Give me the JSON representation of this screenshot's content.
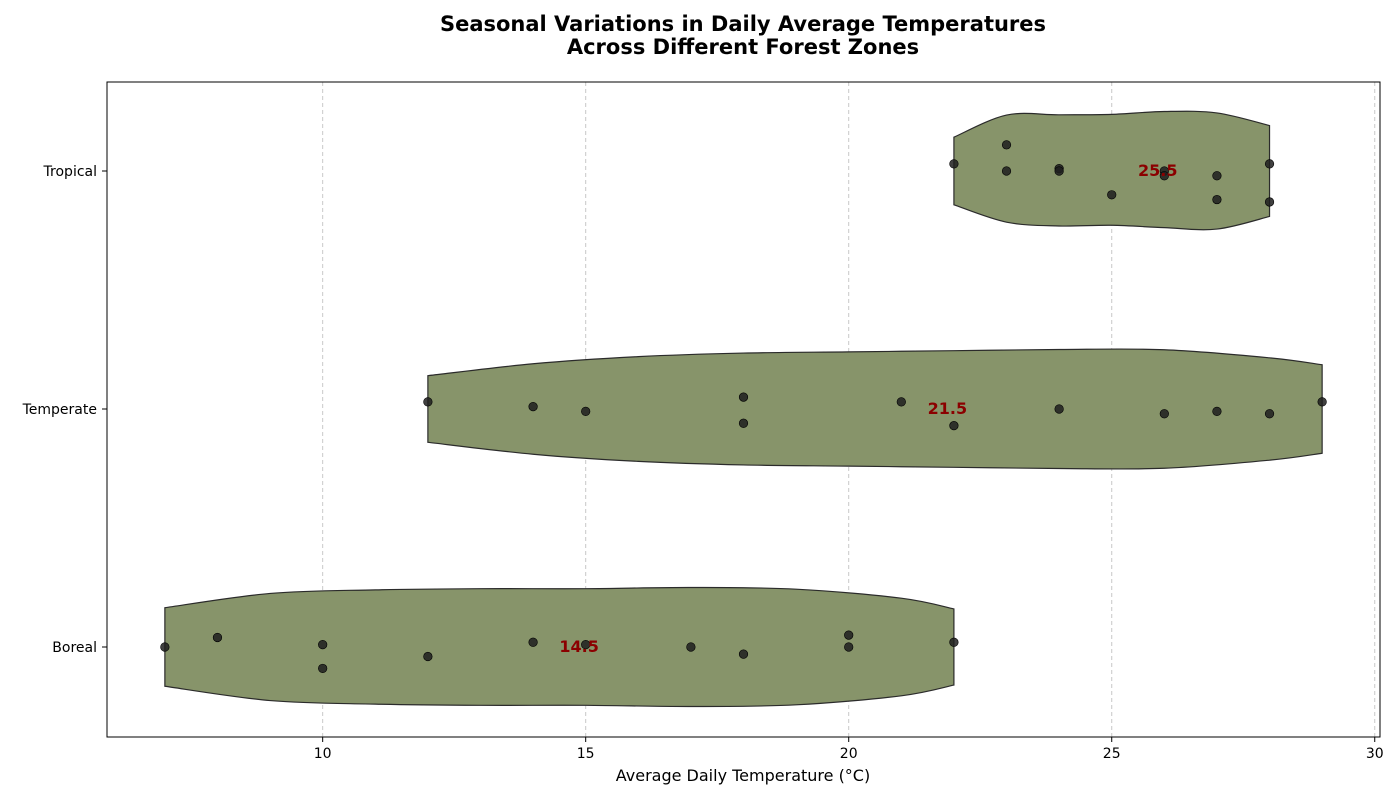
{
  "chart_data": {
    "type": "violin",
    "orientation": "horizontal",
    "title_lines": [
      "Seasonal Variations in Daily Average Temperatures",
      "Across Different Forest Zones"
    ],
    "xlabel": "Average Daily Temperature (°C)",
    "ylabel": "",
    "xlim": [
      5.9,
      30.1
    ],
    "xticks": [
      10,
      15,
      20,
      25,
      30
    ],
    "grid": "x-dashed",
    "colors": {
      "violin_fill": "#87946a",
      "violin_edge": "#2b2b2b",
      "point": "#1f1f1f",
      "median_text": "#8b0000",
      "grid": "#c8c8c8"
    },
    "categories": [
      "Tropical",
      "Temperate",
      "Boreal"
    ],
    "series": [
      {
        "category": "Tropical",
        "median": 25.5,
        "median_label": "25.5",
        "range": [
          22,
          28
        ],
        "values": [
          22,
          23,
          23,
          24,
          24,
          25,
          26,
          26,
          27,
          27,
          28,
          28
        ],
        "jitter": [
          0.03,
          0.11,
          0.0,
          0.01,
          0.0,
          -0.1,
          0.0,
          -0.02,
          -0.02,
          -0.12,
          0.03,
          -0.13
        ],
        "density": [
          [
            22.0,
            0.142
          ],
          [
            23.0,
            0.235
          ],
          [
            24.0,
            0.236
          ],
          [
            25.0,
            0.238
          ],
          [
            26.0,
            0.25
          ],
          [
            27.0,
            0.244
          ],
          [
            28.0,
            0.191
          ]
        ],
        "density_lower": [
          [
            22.0,
            0.142
          ],
          [
            23.0,
            0.215
          ],
          [
            24.0,
            0.231
          ],
          [
            25.0,
            0.228
          ],
          [
            26.0,
            0.238
          ],
          [
            27.0,
            0.244
          ],
          [
            28.0,
            0.191
          ]
        ]
      },
      {
        "category": "Temperate",
        "median": 21.5,
        "median_label": "21.5",
        "range": [
          12,
          29
        ],
        "values": [
          12,
          14,
          15,
          18,
          18,
          21,
          22,
          24,
          26,
          27,
          28,
          29
        ],
        "jitter": [
          0.03,
          0.01,
          -0.01,
          0.05,
          -0.06,
          0.03,
          -0.07,
          0.0,
          -0.02,
          -0.01,
          -0.02,
          0.03
        ],
        "density": [
          [
            12.0,
            0.14
          ],
          [
            14.0,
            0.19
          ],
          [
            16.0,
            0.22
          ],
          [
            18.0,
            0.235
          ],
          [
            20.0,
            0.24
          ],
          [
            22.0,
            0.245
          ],
          [
            24.0,
            0.25
          ],
          [
            26.0,
            0.249
          ],
          [
            28.0,
            0.215
          ],
          [
            29.0,
            0.186
          ]
        ],
        "density_lower": [
          [
            12.0,
            0.14
          ],
          [
            14.0,
            0.19
          ],
          [
            16.0,
            0.22
          ],
          [
            18.0,
            0.235
          ],
          [
            20.0,
            0.24
          ],
          [
            22.0,
            0.245
          ],
          [
            24.0,
            0.25
          ],
          [
            26.0,
            0.249
          ],
          [
            28.0,
            0.215
          ],
          [
            29.0,
            0.186
          ]
        ]
      },
      {
        "category": "Boreal",
        "median": 14.5,
        "median_label": "14.5",
        "range": [
          7,
          22
        ],
        "values": [
          7,
          8,
          10,
          10,
          12,
          14,
          15,
          17,
          18,
          20,
          20,
          22
        ],
        "jitter": [
          0.0,
          0.04,
          0.01,
          -0.09,
          -0.04,
          0.02,
          0.01,
          0.0,
          -0.03,
          0.05,
          0.0,
          0.02
        ],
        "density": [
          [
            7.0,
            0.165
          ],
          [
            9.0,
            0.225
          ],
          [
            11.0,
            0.24
          ],
          [
            13.0,
            0.245
          ],
          [
            15.0,
            0.245
          ],
          [
            17.0,
            0.25
          ],
          [
            19.0,
            0.243
          ],
          [
            21.0,
            0.205
          ],
          [
            22.0,
            0.16
          ]
        ],
        "density_lower": [
          [
            7.0,
            0.165
          ],
          [
            9.0,
            0.225
          ],
          [
            11.0,
            0.24
          ],
          [
            13.0,
            0.245
          ],
          [
            15.0,
            0.245
          ],
          [
            17.0,
            0.25
          ],
          [
            19.0,
            0.243
          ],
          [
            21.0,
            0.205
          ],
          [
            22.0,
            0.16
          ]
        ]
      }
    ]
  }
}
